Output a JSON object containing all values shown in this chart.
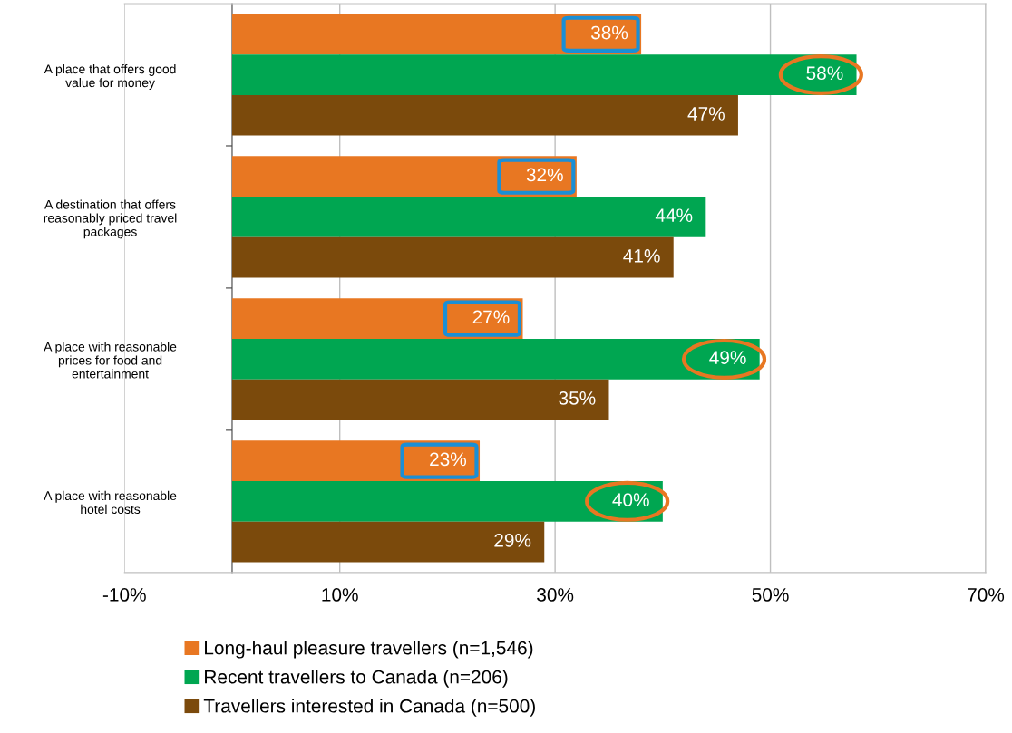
{
  "chart_data": {
    "type": "bar",
    "orientation": "horizontal",
    "categories": [
      "A place that offers good\nvalue for money",
      "A destination that offers\nreasonably priced travel\npackages",
      "A place with reasonable\nprices for food and\nentertainment",
      "A place with reasonable\nhotel costs"
    ],
    "series": [
      {
        "name": "Long-haul pleasure travellers (n=1,546)",
        "color": "#e87722",
        "values": [
          38,
          32,
          27,
          23
        ],
        "value_labels": [
          "38%",
          "32%",
          "27%",
          "23%"
        ]
      },
      {
        "name": "Recent travellers to Canada (n=206)",
        "color": "#00a651",
        "values": [
          58,
          44,
          49,
          40
        ],
        "value_labels": [
          "58%",
          "44%",
          "49%",
          "40%"
        ]
      },
      {
        "name": "Travellers interested in Canada (n=500)",
        "color": "#7b4a0c",
        "values": [
          47,
          41,
          35,
          29
        ],
        "value_labels": [
          "47%",
          "41%",
          "35%",
          "29%"
        ]
      }
    ],
    "xlim": [
      -10,
      70
    ],
    "xticks": [
      {
        "value": -10,
        "label": "-10%"
      },
      {
        "value": 10,
        "label": "10%"
      },
      {
        "value": 30,
        "label": "30%"
      },
      {
        "value": 50,
        "label": "50%"
      },
      {
        "value": 70,
        "label": "70%"
      }
    ],
    "grid": "x",
    "legend": "bottom"
  }
}
